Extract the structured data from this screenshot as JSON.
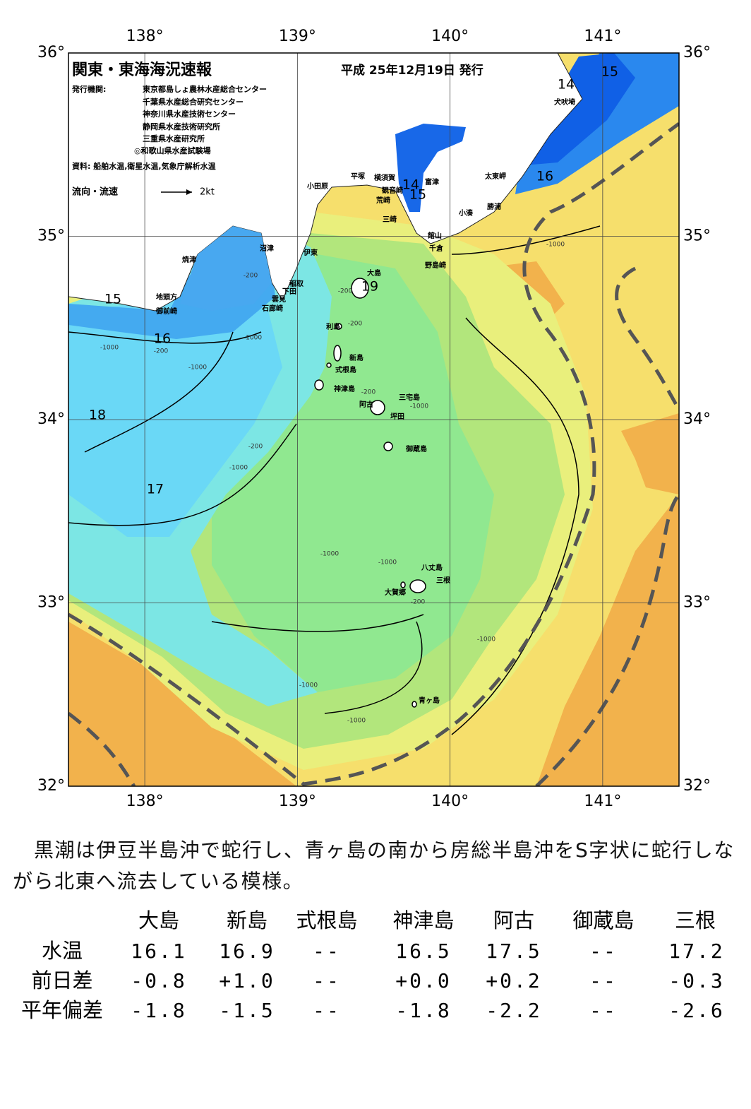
{
  "map": {
    "title": "関東・東海海況速報",
    "date": "平成 25年12月19日 発行",
    "issuer_label": "発行機関:",
    "issuers": [
      "東京都島しょ農林水産総合センター",
      "千葉県水産総合研究センター",
      "神奈川県水産技術センター",
      "静岡県水産技術研究所",
      "三重県水産研究所",
      "◎和歌山県水産試験場"
    ],
    "source": "資料: 船舶水温,衛星水温,気象庁解析水温",
    "legend": {
      "label": "流向・流速",
      "scale": "2kt"
    },
    "xlim": [
      137.5,
      141.5
    ],
    "ylim": [
      32,
      36
    ],
    "lon_ticks": [
      {
        "value": 138,
        "label": "138°"
      },
      {
        "value": 139,
        "label": "139°"
      },
      {
        "value": 140,
        "label": "140°"
      },
      {
        "value": 141,
        "label": "141°"
      }
    ],
    "lat_ticks": [
      {
        "value": 32,
        "label": "32°"
      },
      {
        "value": 33,
        "label": "33°"
      },
      {
        "value": 34,
        "label": "34°"
      },
      {
        "value": 35,
        "label": "35°"
      },
      {
        "value": 36,
        "label": "36°"
      }
    ],
    "places": [
      "犬吠埼",
      "太東岬",
      "勝浦",
      "小湊",
      "富津",
      "横須賀",
      "観音崎",
      "平塚",
      "小田原",
      "荒崎",
      "三崎",
      "館山",
      "千倉",
      "野島崎",
      "沼津",
      "焼津",
      "伊東",
      "稲取",
      "下田",
      "雲見",
      "石廊崎",
      "地頭方",
      "御前崎",
      "大島",
      "利島",
      "新島",
      "式根島",
      "神津島",
      "三宅島",
      "阿古",
      "坪田",
      "御蔵島",
      "八丈島",
      "三根",
      "大賀郷",
      "青ヶ島"
    ],
    "isotherm_labels": [
      "15",
      "14",
      "16",
      "14",
      "15",
      "19",
      "15",
      "16",
      "18",
      "17"
    ],
    "depth_labels": [
      "-200",
      "-200",
      "-200",
      "-200",
      "-200",
      "-200",
      "-200",
      "-1000",
      "-1000",
      "-1000",
      "-1000",
      "-1000",
      "-1000",
      "-1000",
      "-1000",
      "-1000",
      "-1000",
      "-1000"
    ]
  },
  "text": "黒潮は伊豆半島沖で蛇行し、青ヶ島の南から房総半島沖をS字状に蛇行しながら北東へ流去している模様。",
  "table": {
    "columns": [
      "大島",
      "新島",
      "式根島",
      "神津島",
      "阿古",
      "御蔵島",
      "三根"
    ],
    "rows": [
      {
        "label": "水温",
        "cells": [
          "16.1",
          "16.9",
          "--",
          "16.5",
          "17.5",
          "--",
          "17.2"
        ]
      },
      {
        "label": "前日差",
        "cells": [
          "-0.8",
          "+1.0",
          "--",
          "+0.0",
          "+0.2",
          "--",
          "-0.3"
        ]
      },
      {
        "label": "平年偏差",
        "cells": [
          "-1.8",
          "-1.5",
          "--",
          "-1.8",
          "-2.2",
          "--",
          "-2.6"
        ]
      }
    ]
  }
}
